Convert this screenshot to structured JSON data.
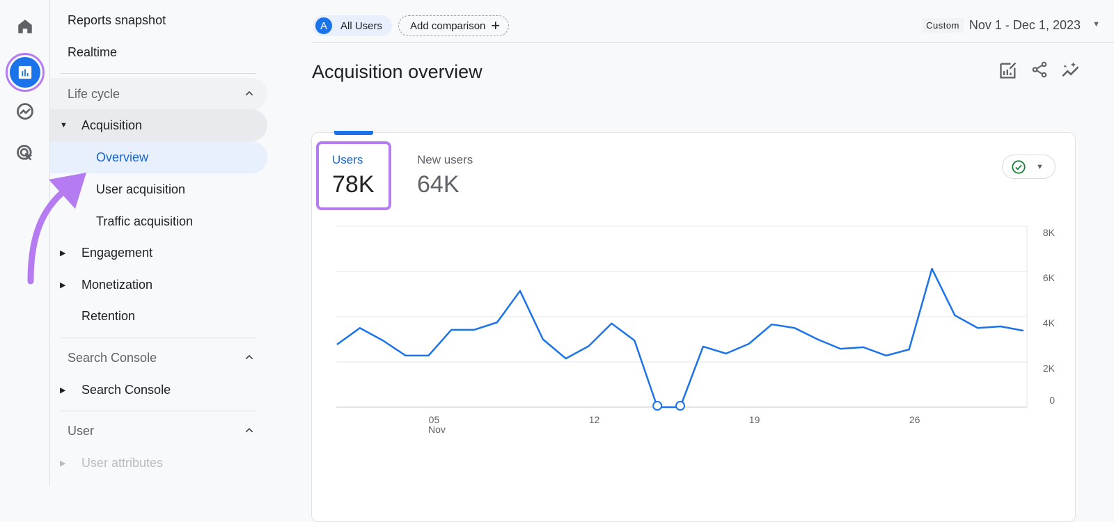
{
  "rail": {
    "items": [
      {
        "icon": "home-icon"
      },
      {
        "icon": "reports-icon",
        "active": true
      },
      {
        "icon": "explore-icon"
      },
      {
        "icon": "advertising-icon"
      }
    ]
  },
  "nav": {
    "reports_snapshot": "Reports snapshot",
    "realtime": "Realtime",
    "lifecycle": {
      "label": "Life cycle",
      "items": {
        "acquisition": "Acquisition",
        "overview": "Overview",
        "user_acquisition": "User acquisition",
        "traffic_acquisition": "Traffic acquisition",
        "engagement": "Engagement",
        "monetization": "Monetization",
        "retention": "Retention"
      }
    },
    "search_console": {
      "label": "Search Console",
      "item": "Search Console"
    },
    "user": {
      "label": "User",
      "item": "User attributes"
    }
  },
  "topbar": {
    "segment_letter": "A",
    "segment": "All Users",
    "add_comparison": "Add comparison",
    "date_badge": "Custom",
    "date_range": "Nov 1 - Dec 1, 2023"
  },
  "page": {
    "title": "Acquisition overview"
  },
  "metrics": [
    {
      "label": "Users",
      "value": "78K",
      "selected": true
    },
    {
      "label": "New users",
      "value": "64K"
    }
  ],
  "colors": {
    "accent": "#1a73e8",
    "highlight": "#b57bf0",
    "check": "#188038"
  },
  "chart_data": {
    "type": "line",
    "x": [
      "Nov 1",
      "Nov 2",
      "Nov 3",
      "Nov 4",
      "Nov 5",
      "Nov 6",
      "Nov 7",
      "Nov 8",
      "Nov 9",
      "Nov 10",
      "Nov 11",
      "Nov 12",
      "Nov 13",
      "Nov 14",
      "Nov 15",
      "Nov 16",
      "Nov 17",
      "Nov 18",
      "Nov 19",
      "Nov 20",
      "Nov 21",
      "Nov 22",
      "Nov 23",
      "Nov 24",
      "Nov 25",
      "Nov 26",
      "Nov 27",
      "Nov 28",
      "Nov 29",
      "Nov 30",
      "Dec 1"
    ],
    "values": [
      2770,
      3500,
      2950,
      2280,
      2280,
      3420,
      3420,
      3750,
      5140,
      3000,
      2150,
      2700,
      3700,
      2950,
      0,
      0,
      2680,
      2370,
      2800,
      3660,
      3500,
      3000,
      2580,
      2650,
      2280,
      2550,
      6120,
      4060,
      3500,
      3570,
      3380
    ],
    "ylim": [
      0,
      8000
    ],
    "yticks": [
      "8K",
      "6K",
      "4K",
      "2K",
      "0"
    ],
    "xticks": [
      {
        "day": "05",
        "month": "Nov"
      },
      {
        "day": "12"
      },
      {
        "day": "19"
      },
      {
        "day": "26"
      }
    ],
    "grid": true,
    "y_axis_side": "right"
  }
}
